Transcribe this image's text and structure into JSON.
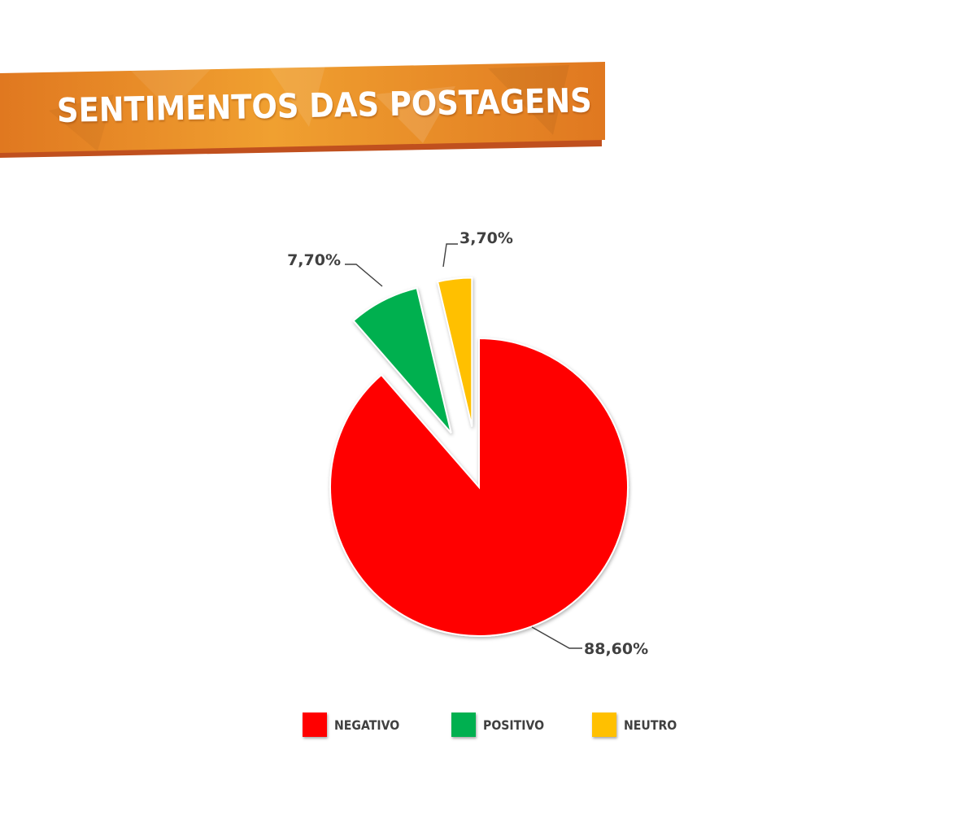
{
  "title": "SENTIMENTOS DAS POSTAGENS",
  "colors": {
    "banner_light": "#f0a030",
    "banner_dark": "#e07820",
    "banner_shadow": "#c0501e"
  },
  "chart_data": {
    "type": "pie",
    "title": "SENTIMENTOS DAS POSTAGENS",
    "categories": [
      "NEGATIVO",
      "POSITIVO",
      "NEUTRO"
    ],
    "values": [
      88.6,
      7.7,
      3.7
    ],
    "data_labels": [
      "88,60%",
      "7,70%",
      "3,70%"
    ],
    "colors": [
      "#ff0000",
      "#00b050",
      "#ffc000"
    ],
    "exploded": [
      false,
      true,
      true
    ],
    "legend_position": "bottom"
  }
}
